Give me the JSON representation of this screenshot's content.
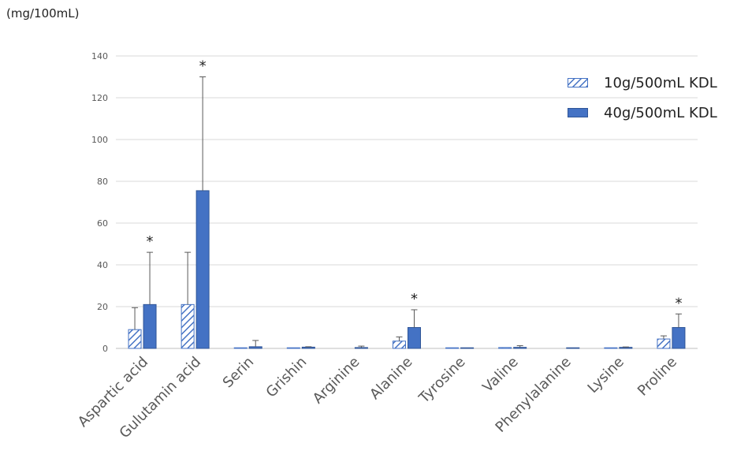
{
  "unit_label": "(mg/100mL)",
  "legend": [
    {
      "label": "10g/500mL KDL",
      "pattern": "hatched"
    },
    {
      "label": "40g/500mL KDL",
      "pattern": "solid"
    }
  ],
  "colors": {
    "series_fill": "#4472c4",
    "series_stroke": "#2f5597",
    "gridline": "#d9d9d9",
    "error_bar": "#595959"
  },
  "chart_data": {
    "type": "bar",
    "categories": [
      "Aspartic acid",
      "Gulutamin acid",
      "Serin",
      "Grishin",
      "Arginine",
      "Alanine",
      "Tyrosine",
      "Valine",
      "Phenylalanine",
      "Lysine",
      "Proline"
    ],
    "series": [
      {
        "name": "10g/500mL KDL",
        "values": [
          9,
          21,
          0.3,
          0.3,
          0,
          3.5,
          0.3,
          0.4,
          0,
          0.3,
          4.5
        ],
        "errors": [
          10.5,
          25,
          0,
          0,
          0,
          2,
          0,
          0,
          0,
          0,
          1.5
        ]
      },
      {
        "name": "40g/500mL KDL",
        "values": [
          21,
          75.5,
          0.8,
          0.6,
          0.4,
          10,
          0.3,
          0.5,
          0.3,
          0.5,
          10
        ],
        "errors": [
          25,
          54.5,
          3,
          0.2,
          0.7,
          8.5,
          0,
          0.8,
          0,
          0.2,
          6.5
        ]
      }
    ],
    "significance": [
      "*",
      "*",
      "",
      "",
      "",
      "*",
      "",
      "",
      "",
      "",
      "*"
    ],
    "ylim": [
      0,
      140
    ],
    "yticks": [
      0,
      20,
      40,
      60,
      80,
      100,
      120,
      140
    ],
    "grid": true,
    "legend_position": "top-right"
  }
}
